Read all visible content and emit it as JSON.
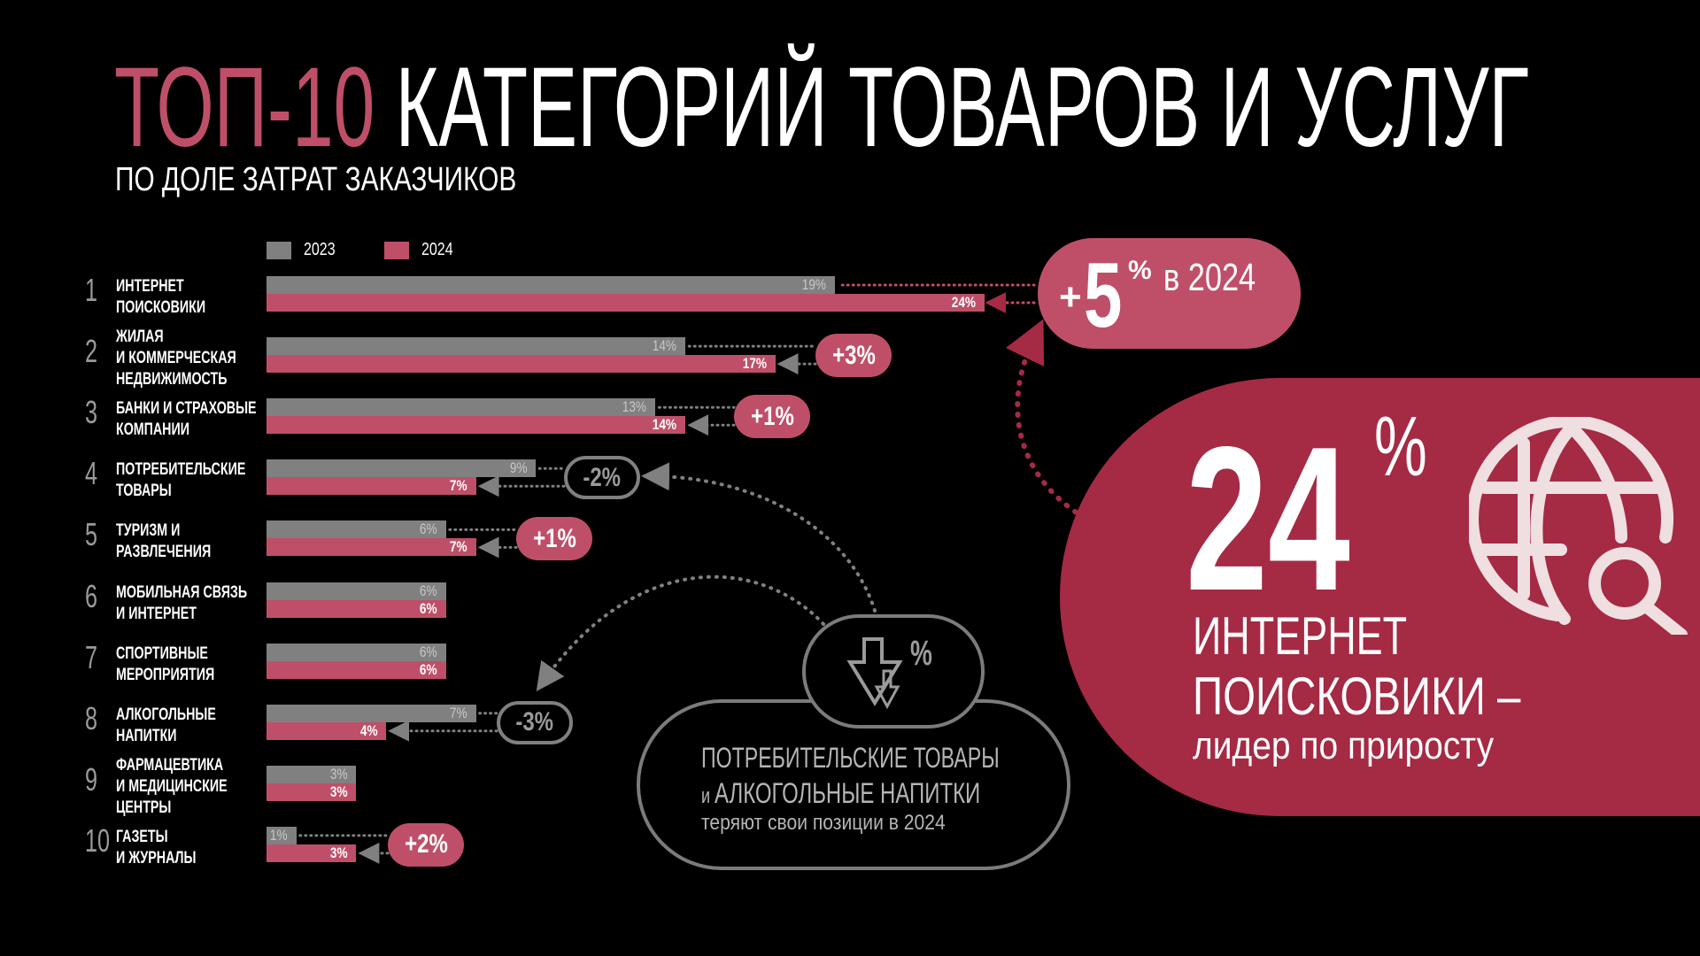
{
  "header": {
    "title_accent": "ТОП-10",
    "title_rest": " КАТЕГОРИЙ ТОВАРОВ И УСЛУГ",
    "subtitle": "ПО ДОЛЕ ЗАТРАТ ЗАКАЗЧИКОВ"
  },
  "colors": {
    "y2023": "#808080",
    "y2024": "#bf4f68",
    "highlight": "#a52a44",
    "icon": "#efdfe1"
  },
  "chart_data": {
    "type": "bar",
    "orientation": "horizontal",
    "title": "ТОП-10 КАТЕГОРИЙ ТОВАРОВ И УСЛУГ",
    "subtitle": "ПО ДОЛЕ ЗАТРАТ ЗАКАЗЧИКОВ",
    "legend": [
      "2023",
      "2024"
    ],
    "legend_position": "top-left",
    "unit": "%",
    "categories": [
      {
        "rank": "1",
        "lines": [
          "ИНТЕРНЕТ",
          "ПОИСКОВИКИ"
        ]
      },
      {
        "rank": "2",
        "lines": [
          "ЖИЛАЯ",
          "И КОММЕРЧЕСКАЯ",
          "НЕДВИЖИМОСТЬ"
        ]
      },
      {
        "rank": "3",
        "lines": [
          "БАНКИ И СТРАХОВЫЕ",
          "КОМПАНИИ"
        ]
      },
      {
        "rank": "4",
        "lines": [
          "ПОТРЕБИТЕЛЬСКИЕ",
          "ТОВАРЫ"
        ]
      },
      {
        "rank": "5",
        "lines": [
          "ТУРИЗМ И",
          "РАЗВЛЕЧЕНИЯ"
        ]
      },
      {
        "rank": "6",
        "lines": [
          "МОБИЛЬНАЯ СВЯЗЬ",
          "И ИНТЕРНЕТ"
        ]
      },
      {
        "rank": "7",
        "lines": [
          "СПОРТИВНЫЕ",
          "МЕРОПРИЯТИЯ"
        ]
      },
      {
        "rank": "8",
        "lines": [
          "АЛКОГОЛЬНЫЕ",
          "НАПИТКИ"
        ]
      },
      {
        "rank": "9",
        "lines": [
          "ФАРМАЦЕВТИКА",
          "И МЕДИЦИНСКИЕ",
          "ЦЕНТРЫ"
        ]
      },
      {
        "rank": "10",
        "lines": [
          "ГАЗЕТЫ",
          "И ЖУРНАЛЫ"
        ]
      }
    ],
    "series": [
      {
        "name": "2023",
        "values": [
          19,
          14,
          13,
          9,
          6,
          6,
          6,
          7,
          3,
          1
        ]
      },
      {
        "name": "2024",
        "values": [
          24,
          17,
          14,
          7,
          7,
          6,
          6,
          4,
          3,
          3
        ]
      }
    ],
    "change_badges": [
      null,
      "+3%",
      "+1%",
      "-2%",
      "+1%",
      null,
      null,
      "-3%",
      null,
      "+2%"
    ],
    "xlim": [
      0,
      24
    ]
  },
  "callout_growth": {
    "plus": "+",
    "number": "5",
    "percent": "%",
    "suffix": "в 2024"
  },
  "highlight": {
    "value": "24",
    "percent": "%",
    "line1": "ИНТЕРНЕТ",
    "line2": "ПОИСКОВИКИ –",
    "line3": "лидер по приросту",
    "icon": "globe-search-icon"
  },
  "decline_note": {
    "icon": "down-arrows-percent-icon",
    "icon_symbol": "%",
    "line1": "ПОТРЕБИТЕЛЬСКИЕ ТОВАРЫ",
    "line2_small": "и ",
    "line2": "АЛКОГОЛЬНЫЕ НАПИТКИ",
    "line3": "теряют свои позиции в 2024"
  }
}
